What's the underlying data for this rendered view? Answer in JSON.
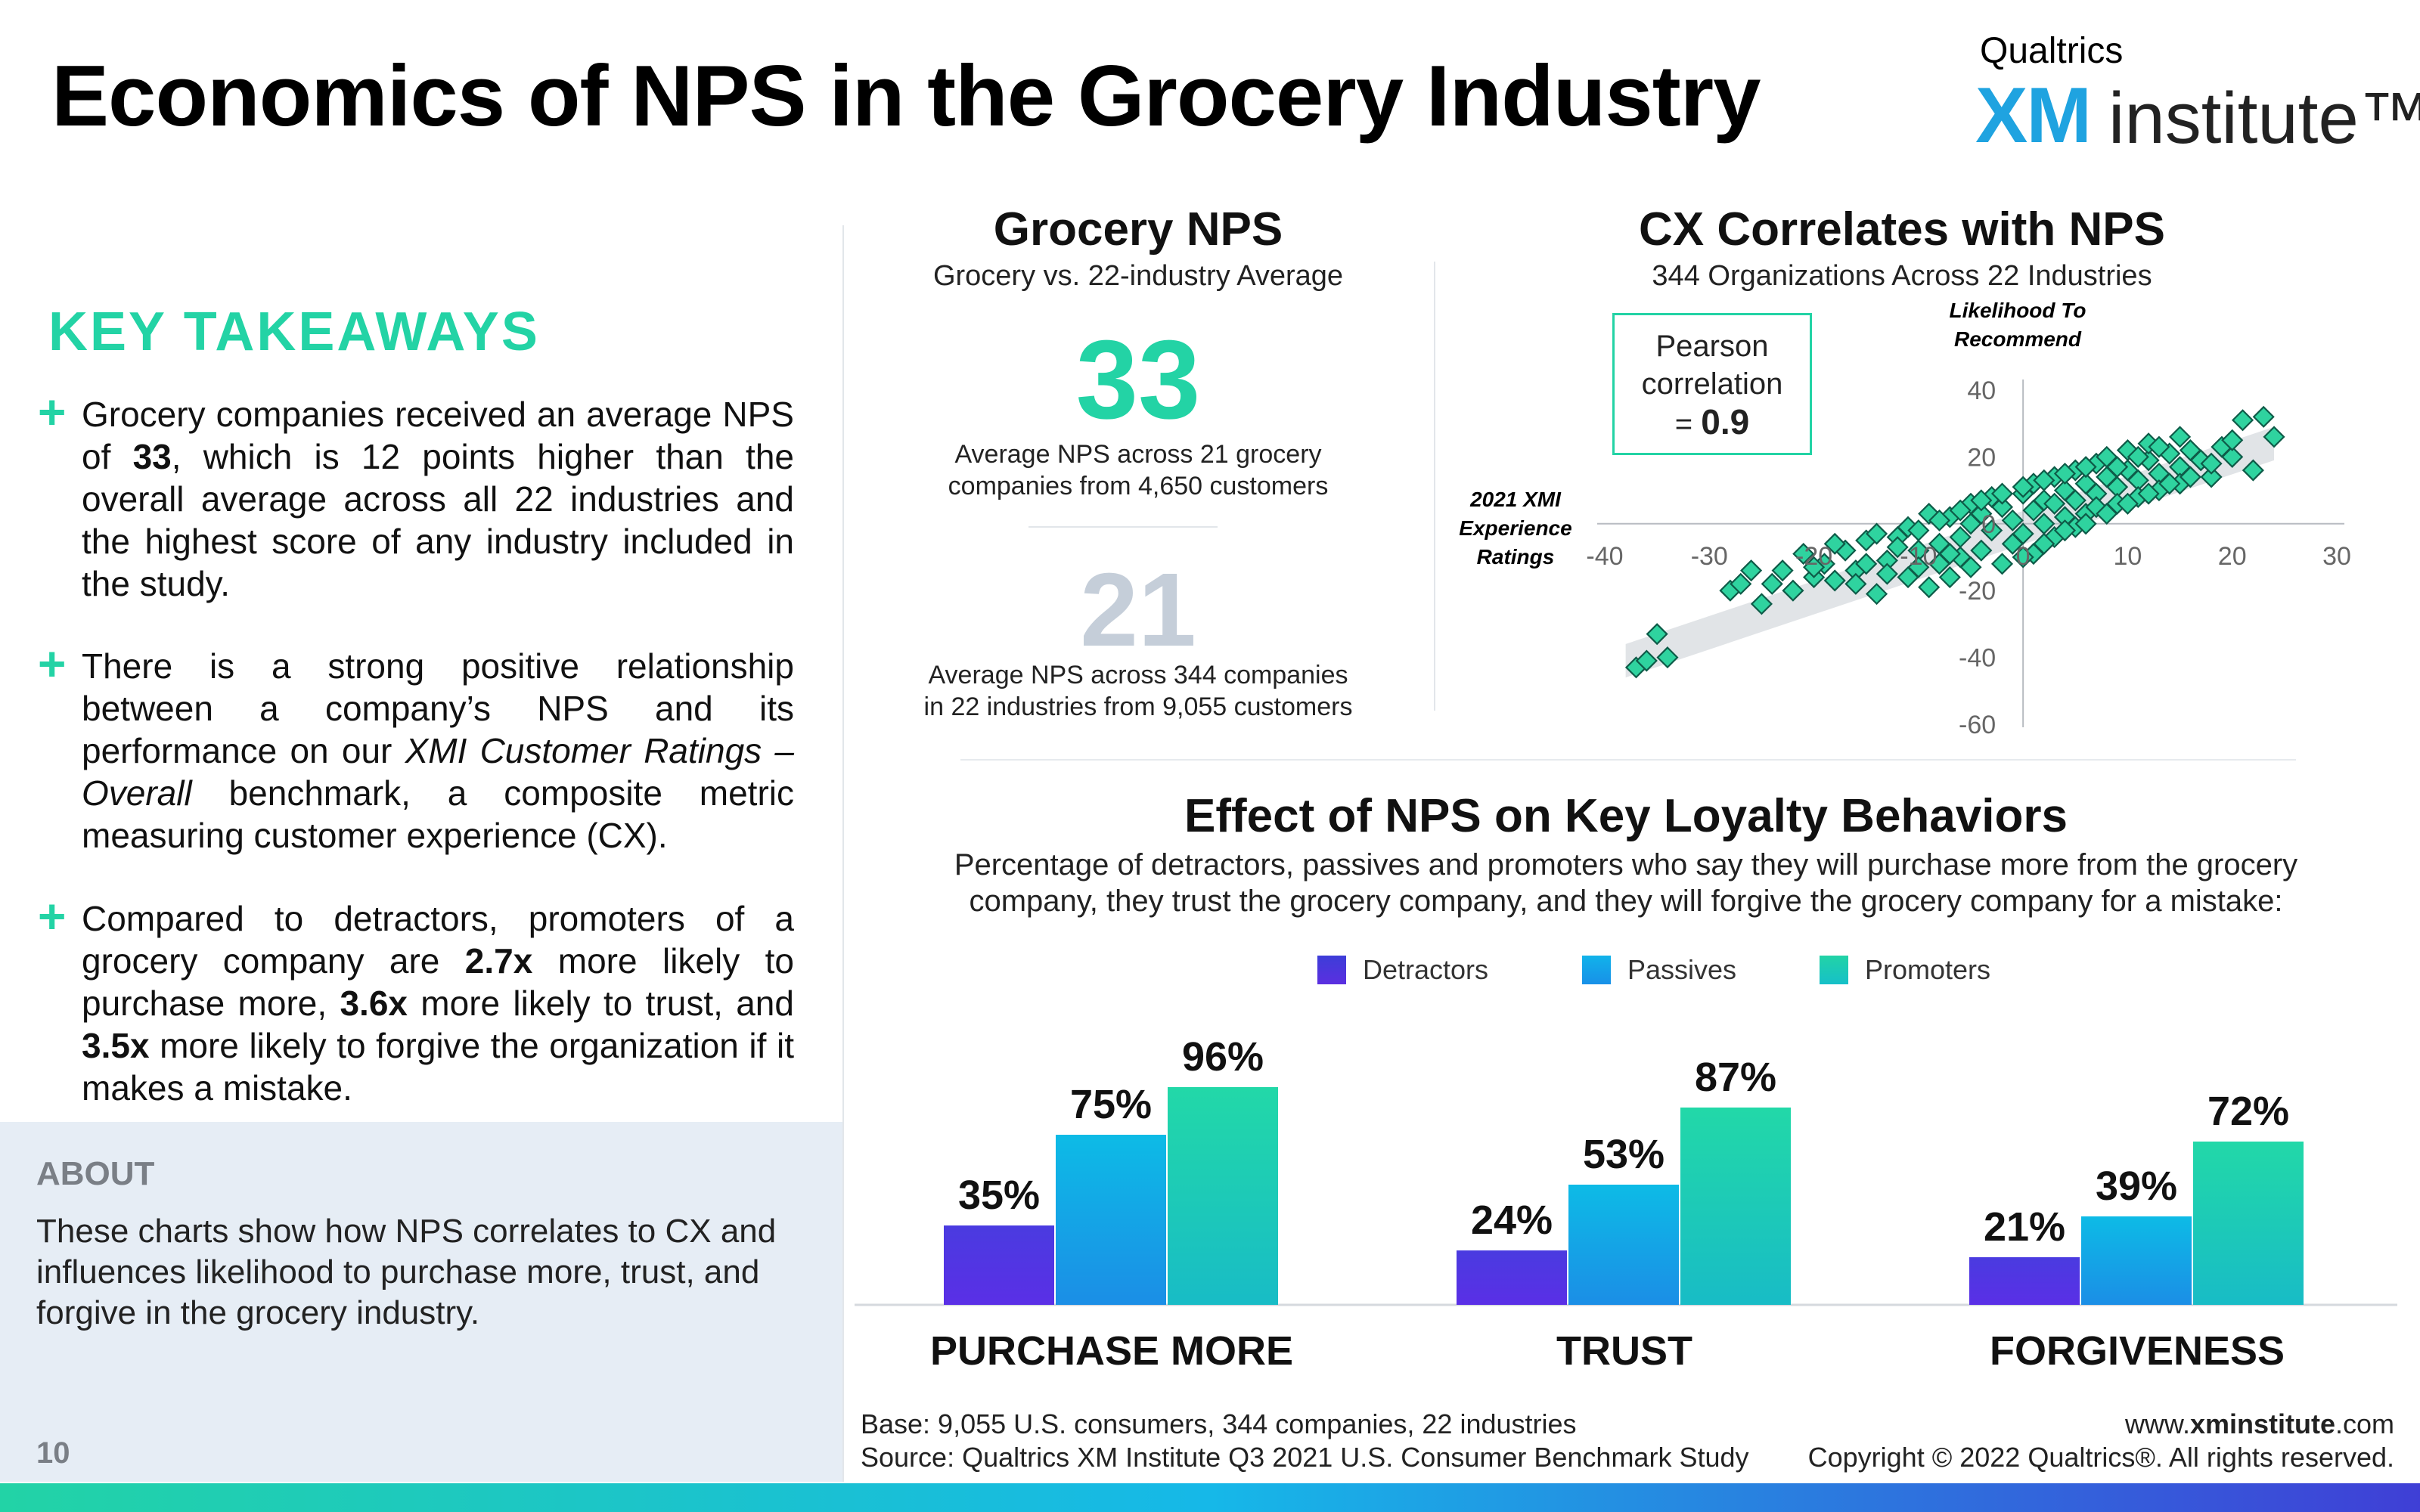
{
  "header": {
    "title": "Economics of NPS in the Grocery Industry",
    "logo_top": "Qualtrics",
    "logo_xm": "XM",
    "logo_institute": "institute™"
  },
  "takeaways": {
    "title": "KEY TAKEAWAYS",
    "plus": "+",
    "item1": {
      "a": "Grocery companies received an average NPS of ",
      "b": "33",
      "c": ", which is 12 points higher than the overall average across all 22 industries and the highest score of any industry included in the study."
    },
    "item2": {
      "a": "There is a strong positive relationship between a company’s NPS and its performance on our ",
      "b": "XMI Customer Ratings – Overall",
      "c": " benchmark, a composite metric measuring customer experience (CX)."
    },
    "item3": {
      "a": "Compared to detractors, promoters of a grocery company are ",
      "b": "2.7x",
      "c": " more likely to purchase more, ",
      "d": "3.6x",
      "e": " more likely to trust, and ",
      "f": "3.5x",
      "g": " more likely to forgive the organization if it makes a mistake."
    }
  },
  "about": {
    "title": "ABOUT",
    "text": "These charts show how NPS correlates to CX and influences likelihood to purchase more, trust, and forgive in the grocery industry."
  },
  "page_number": "10",
  "grocery_nps": {
    "title": "Grocery NPS",
    "subtitle": "Grocery vs. 22-industry Average",
    "grocery_value": "33",
    "grocery_desc_1": "Average NPS across 21 grocery",
    "grocery_desc_2": "companies from 4,650 customers",
    "average_value": "21",
    "average_desc_1": "Average NPS across 344 companies",
    "average_desc_2": "in 22 industries from 9,055 customers"
  },
  "cx": {
    "title": "CX Correlates with NPS",
    "subtitle": "344 Organizations Across 22 Industries",
    "pearson_1": "Pearson",
    "pearson_2": "correlation",
    "pearson_3": "= ",
    "pearson_value": "0.9"
  },
  "effect": {
    "title": "Effect of NPS on Key Loyalty Behaviors",
    "subtitle_1": "Percentage of detractors, passives and promoters who say they will purchase more from the grocery",
    "subtitle_2": "company, they trust the grocery company, and they will forgive the grocery company for a mistake:"
  },
  "chart_data": [
    {
      "type": "scatter",
      "xlabel": "2021 XMI Experience Ratings",
      "xlabel_lines": [
        "2021 XMI",
        "Experience",
        "Ratings"
      ],
      "ylabel": "Likelihood To Recommend",
      "ylabel_lines": [
        "Likelihood To",
        "Recommend"
      ],
      "xlim": [
        -40,
        30
      ],
      "ylim": [
        -60,
        40
      ],
      "x_ticks": [
        "-40",
        "-30",
        "-20",
        "-10",
        "0",
        "10",
        "20",
        "30"
      ],
      "y_ticks": [
        "40",
        "20",
        "0",
        "-20",
        "-40",
        "-60"
      ],
      "trend_band": {
        "x": [
          -38,
          24
        ],
        "y_center": [
          -41,
          24
        ],
        "half_width": 5
      },
      "points": [
        [
          -37,
          -43
        ],
        [
          -36,
          -41
        ],
        [
          -35,
          -33
        ],
        [
          -34,
          -40
        ],
        [
          -28,
          -20
        ],
        [
          -27,
          -18
        ],
        [
          -25,
          -24
        ],
        [
          -24,
          -18
        ],
        [
          -23,
          -14
        ],
        [
          -22,
          -20
        ],
        [
          -21,
          -9
        ],
        [
          -20,
          -16
        ],
        [
          -19,
          -12
        ],
        [
          -18,
          -17
        ],
        [
          -17,
          -8
        ],
        [
          -16,
          -14
        ],
        [
          -15,
          -5
        ],
        [
          -14,
          -21
        ],
        [
          -13,
          -11
        ],
        [
          -12,
          -4
        ],
        [
          -11,
          -16
        ],
        [
          -11,
          -1
        ],
        [
          -10,
          -8
        ],
        [
          -9,
          -19
        ],
        [
          -9,
          3
        ],
        [
          -8,
          -6
        ],
        [
          -8,
          -12
        ],
        [
          -7,
          2
        ],
        [
          -7,
          -16
        ],
        [
          -6,
          -4
        ],
        [
          -6,
          -10
        ],
        [
          -5,
          0
        ],
        [
          -5,
          6
        ],
        [
          -4,
          -8
        ],
        [
          -4,
          3
        ],
        [
          -3,
          -2
        ],
        [
          -3,
          8
        ],
        [
          -2,
          -12
        ],
        [
          -2,
          5
        ],
        [
          -1,
          1
        ],
        [
          -1,
          -6
        ],
        [
          0,
          9
        ],
        [
          0,
          -3
        ],
        [
          1,
          4
        ],
        [
          1,
          12
        ],
        [
          1,
          -9
        ],
        [
          2,
          7
        ],
        [
          2,
          0
        ],
        [
          3,
          14
        ],
        [
          3,
          -4
        ],
        [
          3,
          6
        ],
        [
          4,
          10
        ],
        [
          4,
          2
        ],
        [
          5,
          16
        ],
        [
          5,
          -1
        ],
        [
          5,
          7
        ],
        [
          6,
          12
        ],
        [
          6,
          3
        ],
        [
          7,
          18
        ],
        [
          7,
          9
        ],
        [
          7,
          5
        ],
        [
          8,
          14
        ],
        [
          8,
          20
        ],
        [
          9,
          11
        ],
        [
          9,
          6
        ],
        [
          10,
          16
        ],
        [
          10,
          22
        ],
        [
          11,
          13
        ],
        [
          11,
          8
        ],
        [
          12,
          19
        ],
        [
          12,
          24
        ],
        [
          13,
          15
        ],
        [
          13,
          10
        ],
        [
          14,
          21
        ],
        [
          15,
          17
        ],
        [
          15,
          12
        ],
        [
          16,
          22
        ],
        [
          17,
          19
        ],
        [
          18,
          14
        ],
        [
          19,
          23
        ],
        [
          20,
          20
        ],
        [
          21,
          31
        ],
        [
          22,
          16
        ],
        [
          23,
          32
        ],
        [
          24,
          26
        ],
        [
          -15,
          -12
        ],
        [
          -12,
          -7
        ],
        [
          -10,
          -2
        ],
        [
          -8,
          1
        ],
        [
          -6,
          4
        ],
        [
          -4,
          7
        ],
        [
          -2,
          9
        ],
        [
          0,
          11
        ],
        [
          2,
          13
        ],
        [
          4,
          15
        ],
        [
          6,
          17
        ],
        [
          -18,
          -6
        ],
        [
          -14,
          -3
        ],
        [
          -20,
          -13
        ],
        [
          -26,
          -14
        ],
        [
          -16,
          -18
        ],
        [
          -13,
          -15
        ],
        [
          -10,
          -13
        ],
        [
          -7,
          -9
        ],
        [
          -5,
          -13
        ],
        [
          0,
          -10
        ],
        [
          2,
          -6
        ],
        [
          4,
          -2
        ],
        [
          6,
          0
        ],
        [
          8,
          3
        ],
        [
          10,
          6
        ],
        [
          12,
          9
        ],
        [
          14,
          12
        ],
        [
          16,
          14
        ],
        [
          18,
          18
        ],
        [
          20,
          25
        ],
        [
          9,
          17
        ],
        [
          11,
          20
        ],
        [
          13,
          23
        ],
        [
          15,
          26
        ]
      ]
    },
    {
      "type": "bar",
      "categories": [
        "PURCHASE MORE",
        "TRUST",
        "FORGIVENESS"
      ],
      "series": [
        {
          "name": "Detractors",
          "values": [
            35,
            24,
            21
          ],
          "color": "#3d3dd8"
        },
        {
          "name": "Passives",
          "values": [
            75,
            53,
            39
          ],
          "color": "#11b3ea"
        },
        {
          "name": "Promoters",
          "values": [
            96,
            87,
            72
          ],
          "color": "#22d3a6"
        }
      ],
      "value_suffix": "%",
      "ylim": [
        0,
        100
      ]
    }
  ],
  "footer": {
    "base": "Base: 9,055 U.S. consumers, 344 companies, 22 industries",
    "source": "Source: Qualtrics XM Institute Q3 2021 U.S. Consumer Benchmark Study",
    "url_prefix": "www.",
    "url_bold": "xminstitute",
    "url_suffix": ".com",
    "copyright": "Copyright © 2022 Qualtrics®. All rights reserved."
  }
}
